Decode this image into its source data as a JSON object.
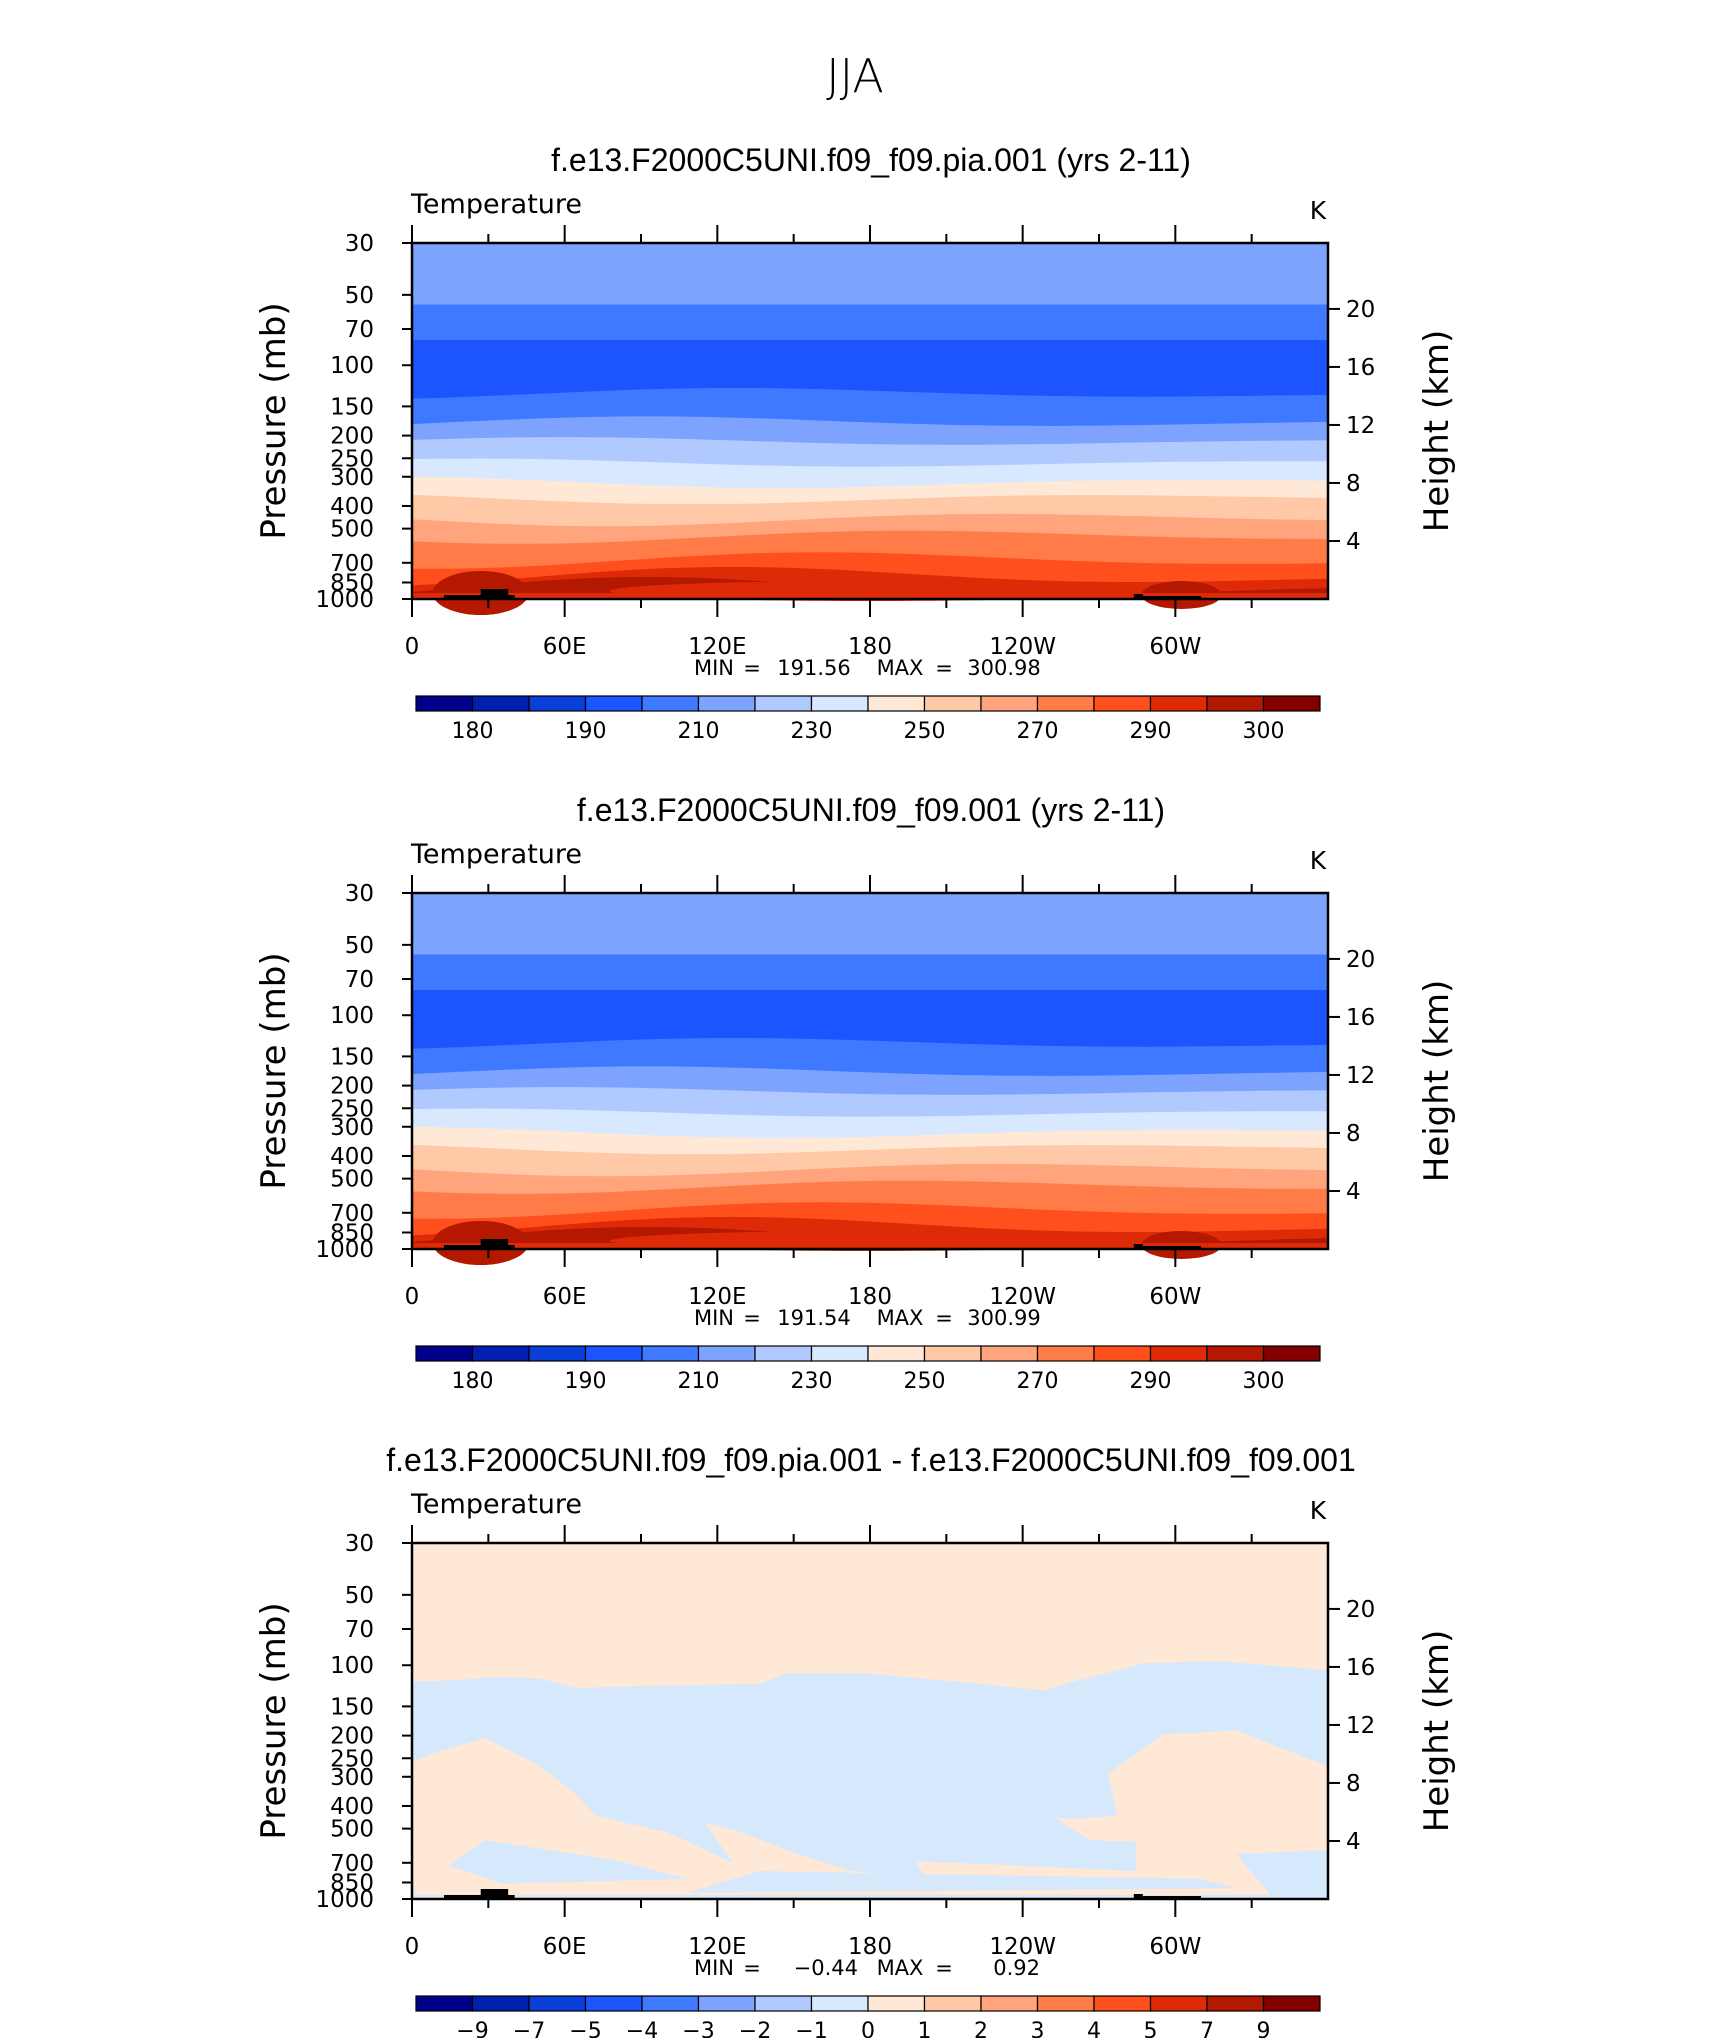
{
  "figure_title": "JJA",
  "panels": [
    {
      "title": "f.e13.F2000C5UNI.f09_f09.pia.001 (yrs 2-11)",
      "left_label": "Temperature",
      "right_label": "K",
      "stats": {
        "min_label": "MIN",
        "min_value": "191.56",
        "max_label": "MAX",
        "max_value": "300.98"
      },
      "colorbar_labels": [
        "180",
        "190",
        "210",
        "230",
        "250",
        "270",
        "290",
        "300"
      ],
      "kind": "abs"
    },
    {
      "title": "f.e13.F2000C5UNI.f09_f09.001 (yrs 2-11)",
      "left_label": "Temperature",
      "right_label": "K",
      "stats": {
        "min_label": "MIN",
        "min_value": "191.54",
        "max_label": "MAX",
        "max_value": "300.99"
      },
      "colorbar_labels": [
        "180",
        "190",
        "210",
        "230",
        "250",
        "270",
        "290",
        "300"
      ],
      "kind": "abs"
    },
    {
      "title": "f.e13.F2000C5UNI.f09_f09.pia.001 - f.e13.F2000C5UNI.f09_f09.001",
      "left_label": "Temperature",
      "right_label": "K",
      "stats": {
        "min_label": "MIN",
        "min_value": "−0.44",
        "max_label": "MAX",
        "max_value": "0.92"
      },
      "colorbar_labels": [
        "−9",
        "−7",
        "−5",
        "−4",
        "−3",
        "−2",
        "−1",
        "0",
        "1",
        "2",
        "3",
        "4",
        "5",
        "7",
        "9"
      ],
      "kind": "diff"
    }
  ],
  "axes": {
    "ylabel_left": "Pressure (mb)",
    "ylabel_right": "Height (km)",
    "pressure_ticks": [
      "30",
      "50",
      "70",
      "100",
      "150",
      "200",
      "250",
      "300",
      "400",
      "500",
      "700",
      "850",
      "1000"
    ],
    "height_ticks": [
      "20",
      "16",
      "12",
      "8",
      "4"
    ],
    "lon_ticks": [
      "0",
      "60E",
      "120E",
      "180",
      "120W",
      "60W"
    ]
  },
  "colors": {
    "palette": [
      "#00008b",
      "#0220b0",
      "#0a3ed8",
      "#1c54ff",
      "#3f79ff",
      "#7ea3ff",
      "#b0c9ff",
      "#d8e8ff",
      "#ffe9d6",
      "#ffc9a8",
      "#ffa47c",
      "#ff7c48",
      "#ff4f1c",
      "#df2a08",
      "#b41800",
      "#840000"
    ],
    "diff_positive": "#ffe9d6",
    "diff_negative": "#d6e8fb",
    "topography": "#000000"
  },
  "chart_data": [
    {
      "type": "heatmap",
      "title": "f.e13.F2000C5UNI.f09_f09.pia.001 (yrs 2-11)",
      "variable": "Temperature",
      "units": "K",
      "xlabel": "",
      "ylabel": "Pressure (mb)",
      "ylabel_right": "Height (km)",
      "x": [
        "0",
        "60E",
        "120E",
        "180",
        "120W",
        "60W"
      ],
      "y_pressure_mb": [
        30,
        50,
        70,
        100,
        150,
        200,
        250,
        300,
        400,
        500,
        700,
        850,
        1000
      ],
      "ylim": [
        1000,
        30
      ],
      "y_scale": "log",
      "zonal_mean_K": [
        224,
        214,
        209,
        200,
        203,
        213,
        222,
        234,
        252,
        264,
        280,
        288,
        297
      ],
      "min": 191.56,
      "max": 300.98,
      "levels": [
        180,
        190,
        210,
        230,
        250,
        270,
        290,
        300
      ]
    },
    {
      "type": "heatmap",
      "title": "f.e13.F2000C5UNI.f09_f09.001 (yrs 2-11)",
      "variable": "Temperature",
      "units": "K",
      "xlabel": "",
      "ylabel": "Pressure (mb)",
      "ylabel_right": "Height (km)",
      "x": [
        "0",
        "60E",
        "120E",
        "180",
        "120W",
        "60W"
      ],
      "y_pressure_mb": [
        30,
        50,
        70,
        100,
        150,
        200,
        250,
        300,
        400,
        500,
        700,
        850,
        1000
      ],
      "ylim": [
        1000,
        30
      ],
      "y_scale": "log",
      "zonal_mean_K": [
        224,
        214,
        209,
        200,
        203,
        213,
        222,
        234,
        252,
        264,
        280,
        288,
        297
      ],
      "min": 191.54,
      "max": 300.99,
      "levels": [
        180,
        190,
        210,
        230,
        250,
        270,
        290,
        300
      ]
    },
    {
      "type": "heatmap",
      "title": "f.e13.F2000C5UNI.f09_f09.pia.001 - f.e13.F2000C5UNI.f09_f09.001",
      "variable": "Temperature",
      "units": "K",
      "xlabel": "",
      "ylabel": "Pressure (mb)",
      "ylabel_right": "Height (km)",
      "x": [
        "0",
        "60E",
        "120E",
        "180",
        "120W",
        "60W"
      ],
      "ylim": [
        1000,
        30
      ],
      "y_scale": "log",
      "min": -0.44,
      "max": 0.92,
      "levels": [
        -9,
        -7,
        -5,
        -4,
        -3,
        -2,
        -1,
        0,
        1,
        2,
        3,
        4,
        5,
        7,
        9
      ]
    }
  ]
}
